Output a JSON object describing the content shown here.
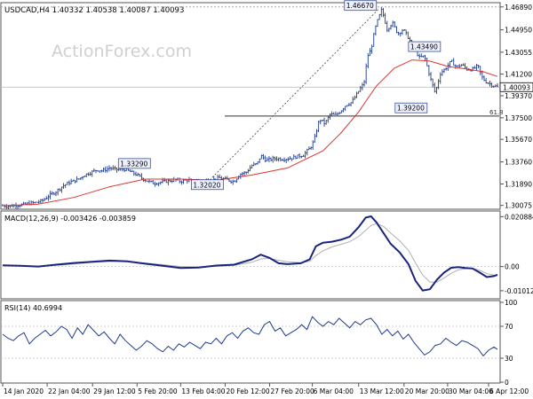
{
  "header": {
    "symbol_line": "USDCAD,H4  1.40332 1.40538 1.40087 1.40093",
    "watermark": "ActionForex.com"
  },
  "colors": {
    "price": "#1f3b8c",
    "ma": "#e0322d",
    "fib": "#333333",
    "macd": "#1a237e",
    "signal": "#b0b0b0",
    "rsi": "#1f3b8c",
    "grid": "#c8c8c8",
    "label_box_bg": "#eef1ff",
    "current_box_bg": "#ffffff"
  },
  "chart_data": [
    {
      "type": "line",
      "name": "price",
      "title": "USDCAD,H4  1.40332 1.40538 1.40087 1.40093",
      "ylim": [
        1.2975,
        1.4725
      ],
      "yticks": [
        "1.46890",
        "1.44950",
        "1.43055",
        "1.41200",
        "1.39370",
        "1.37500",
        "1.35670",
        "1.33760",
        "1.31890",
        "1.30075"
      ],
      "yticks_values": [
        1.4689,
        1.4495,
        1.43055,
        1.412,
        1.3937,
        1.375,
        1.3567,
        1.3376,
        1.3189,
        1.30075
      ],
      "current_price": "1.40093",
      "current_value": 1.40093,
      "close_x": [
        0,
        8,
        16,
        24,
        30,
        36,
        44,
        52,
        60,
        68,
        76,
        84,
        92,
        100,
        106,
        112,
        120,
        128,
        136,
        140,
        144,
        150,
        156,
        162,
        170,
        178,
        186,
        194,
        200,
        208,
        214,
        220,
        228,
        236,
        244,
        252,
        260,
        266,
        274,
        280,
        286,
        290,
        296,
        300,
        306,
        314,
        322,
        330,
        338,
        346,
        350,
        356,
        362,
        368,
        374,
        380,
        386,
        392,
        398,
        402,
        406,
        410,
        414,
        418,
        422,
        426,
        432,
        438,
        444,
        450,
        456,
        462,
        468,
        474,
        480,
        486,
        492,
        498,
        504,
        510,
        516,
        522,
        528,
        534,
        538,
        542,
        548,
        556
      ],
      "close_y": [
        1.3005,
        1.3,
        1.301,
        1.3015,
        1.3025,
        1.303,
        1.3045,
        1.309,
        1.3125,
        1.3175,
        1.3205,
        1.3225,
        1.3265,
        1.329,
        1.331,
        1.33,
        1.3325,
        1.331,
        1.3315,
        1.3305,
        1.329,
        1.327,
        1.324,
        1.3215,
        1.3195,
        1.3205,
        1.3215,
        1.3225,
        1.321,
        1.3225,
        1.3205,
        1.3215,
        1.322,
        1.3225,
        1.324,
        1.3225,
        1.321,
        1.327,
        1.329,
        1.3345,
        1.336,
        1.343,
        1.339,
        1.3395,
        1.3405,
        1.34,
        1.3405,
        1.342,
        1.3435,
        1.35,
        1.356,
        1.374,
        1.37,
        1.378,
        1.377,
        1.381,
        1.386,
        1.388,
        1.395,
        1.4,
        1.404,
        1.427,
        1.433,
        1.449,
        1.459,
        1.4667,
        1.45,
        1.4555,
        1.446,
        1.45,
        1.4425,
        1.4349,
        1.426,
        1.427,
        1.41,
        1.396,
        1.413,
        1.417,
        1.423,
        1.418,
        1.42,
        1.416,
        1.416,
        1.419,
        1.41,
        1.406,
        1.4035,
        1.4009
      ]
    },
    {
      "type": "line",
      "name": "moving-average",
      "x": [
        0,
        40,
        80,
        120,
        160,
        200,
        240,
        280,
        320,
        360,
        380,
        400,
        420,
        440,
        460,
        480,
        500,
        520,
        540,
        556
      ],
      "values": [
        1.3005,
        1.3018,
        1.3075,
        1.3165,
        1.323,
        1.323,
        1.322,
        1.3265,
        1.3325,
        1.347,
        1.362,
        1.38,
        1.402,
        1.417,
        1.424,
        1.423,
        1.4185,
        1.4165,
        1.414,
        1.41
      ]
    },
    {
      "type": "annotation-set",
      "name": "price-labels",
      "labels": [
        {
          "text": "1.46670",
          "x": 422,
          "y": 1.4667
        },
        {
          "text": "1.43490",
          "x": 474,
          "y": 1.4349
        },
        {
          "text": "1.39200",
          "x": 463,
          "y": 1.392
        },
        {
          "text": "1.33290",
          "x": 150,
          "y": 1.3329
        },
        {
          "text": "1.32020",
          "x": 230,
          "y": 1.3202
        }
      ],
      "fib_label": "61.8",
      "fib_value": 1.3765
    },
    {
      "type": "line",
      "name": "macd",
      "title": "MACD(12,26,9) -0.003426 -0.003859",
      "ylim": [
        -0.0135,
        0.0225
      ],
      "yticks": [
        "0.020884",
        "0.00",
        "-0.010121"
      ],
      "yticks_values": [
        0.020884,
        0.0,
        -0.010121
      ],
      "x": [
        0,
        20,
        40,
        60,
        80,
        100,
        120,
        140,
        160,
        180,
        200,
        220,
        240,
        260,
        280,
        290,
        300,
        310,
        320,
        335,
        345,
        352,
        360,
        370,
        380,
        390,
        400,
        408,
        414,
        420,
        428,
        436,
        446,
        456,
        464,
        472,
        480,
        488,
        496,
        504,
        512,
        520,
        528,
        536,
        544,
        552,
        556
      ],
      "macd": [
        0.0005,
        0.0003,
        0.0,
        0.0008,
        0.0015,
        0.002,
        0.0025,
        0.0022,
        0.0012,
        0.0003,
        -0.0006,
        -0.0004,
        0.0004,
        0.0008,
        0.003,
        0.005,
        0.0036,
        0.0014,
        0.001,
        0.0014,
        0.003,
        0.0085,
        0.01,
        0.0104,
        0.0112,
        0.0125,
        0.0165,
        0.0205,
        0.021,
        0.0185,
        0.014,
        0.0095,
        0.006,
        0.001,
        -0.006,
        -0.01,
        -0.0095,
        -0.0055,
        -0.0025,
        -0.0005,
        -0.0002,
        -0.0006,
        -0.0008,
        -0.0025,
        -0.0044,
        -0.004,
        -0.0034
      ],
      "signal": [
        0.0004,
        0.0003,
        0.0002,
        0.0005,
        0.0011,
        0.0017,
        0.0021,
        0.0021,
        0.0015,
        0.0008,
        0.0,
        -0.0002,
        0.0001,
        0.0005,
        0.0018,
        0.0032,
        0.0034,
        0.0026,
        0.002,
        0.0016,
        0.0022,
        0.0046,
        0.0066,
        0.0082,
        0.0093,
        0.0104,
        0.0126,
        0.0152,
        0.0172,
        0.018,
        0.0168,
        0.014,
        0.0108,
        0.0068,
        0.0015,
        -0.0035,
        -0.0065,
        -0.0065,
        -0.0048,
        -0.0028,
        -0.0014,
        -0.0009,
        -0.0008,
        -0.0016,
        -0.003,
        -0.0036,
        -0.0039
      ]
    },
    {
      "type": "line",
      "name": "rsi",
      "title": "RSI(14) 40.6994",
      "ylim": [
        0,
        100
      ],
      "yticks": [
        "100",
        "70",
        "30",
        "0"
      ],
      "yticks_values": [
        100,
        70,
        30,
        0
      ],
      "levels": [
        70,
        30
      ],
      "x": [
        0,
        6,
        12,
        18,
        24,
        30,
        36,
        42,
        48,
        54,
        60,
        66,
        72,
        78,
        84,
        90,
        96,
        102,
        108,
        114,
        120,
        126,
        132,
        138,
        144,
        150,
        156,
        162,
        168,
        174,
        180,
        186,
        192,
        198,
        204,
        210,
        216,
        222,
        228,
        234,
        240,
        246,
        252,
        258,
        264,
        270,
        276,
        282,
        288,
        294,
        300,
        306,
        312,
        318,
        324,
        330,
        336,
        342,
        348,
        354,
        360,
        366,
        372,
        378,
        384,
        390,
        396,
        402,
        408,
        414,
        420,
        426,
        432,
        438,
        444,
        450,
        456,
        462,
        468,
        474,
        480,
        486,
        492,
        498,
        504,
        510,
        516,
        522,
        528,
        534,
        540,
        546,
        552,
        556
      ],
      "values": [
        60,
        55,
        52,
        58,
        62,
        48,
        55,
        60,
        65,
        58,
        63,
        70,
        66,
        55,
        68,
        60,
        72,
        65,
        58,
        63,
        55,
        48,
        60,
        52,
        46,
        40,
        45,
        52,
        48,
        42,
        38,
        45,
        40,
        48,
        44,
        50,
        46,
        42,
        50,
        48,
        55,
        48,
        58,
        62,
        55,
        64,
        68,
        62,
        60,
        72,
        76,
        64,
        68,
        58,
        62,
        66,
        72,
        66,
        82,
        75,
        70,
        76,
        72,
        80,
        74,
        68,
        76,
        72,
        78,
        80,
        72,
        60,
        66,
        58,
        64,
        54,
        60,
        50,
        42,
        34,
        38,
        46,
        48,
        55,
        50,
        46,
        52,
        50,
        46,
        42,
        33,
        40,
        44,
        41
      ]
    }
  ],
  "xaxis": {
    "labels": [
      "14 Jan 2020",
      "22 Jan 04:00",
      "29 Jan 12:00",
      "5 Feb 20:00",
      "13 Feb 04:00",
      "20 Feb 12:00",
      "27 Feb 20:00",
      "6 Mar 04:00",
      "13 Mar 12:00",
      "20 Mar 20:00",
      "30 Mar 04:00",
      "6 Apr 12:00"
    ],
    "positions": [
      0,
      50,
      101,
      151,
      200,
      250,
      300,
      348,
      400,
      451,
      500,
      546
    ]
  }
}
